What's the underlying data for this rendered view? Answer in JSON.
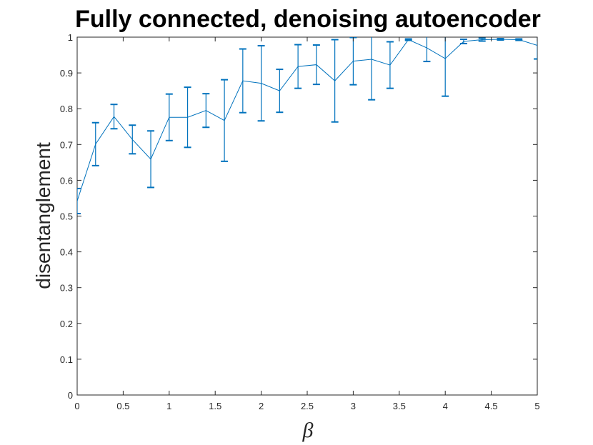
{
  "chart_data": {
    "type": "line",
    "title": "Fully connected, denoising autoencoder",
    "xlabel": "β",
    "ylabel": "disentanglement",
    "x": [
      0,
      0.2,
      0.4,
      0.6,
      0.8,
      1.0,
      1.2,
      1.4,
      1.6,
      1.8,
      2.0,
      2.2,
      2.4,
      2.6,
      2.8,
      3.0,
      3.2,
      3.4,
      3.6,
      3.8,
      4.0,
      4.2,
      4.4,
      4.6,
      4.8,
      5.0
    ],
    "series": [
      {
        "color": "#0072bd",
        "values": [
          0.542,
          0.701,
          0.778,
          0.714,
          0.659,
          0.776,
          0.776,
          0.795,
          0.767,
          0.878,
          0.871,
          0.85,
          0.918,
          0.923,
          0.878,
          0.933,
          0.938,
          0.922,
          0.993,
          0.97,
          0.94,
          0.988,
          0.993,
          0.994,
          0.993,
          0.977
        ],
        "errors": [
          0.035,
          0.06,
          0.034,
          0.04,
          0.079,
          0.065,
          0.084,
          0.047,
          0.114,
          0.089,
          0.105,
          0.06,
          0.061,
          0.055,
          0.115,
          0.066,
          0.113,
          0.065,
          0.002,
          0.038,
          0.105,
          0.006,
          0.004,
          0.002,
          0.002,
          0.038
        ]
      }
    ],
    "xlim": [
      0,
      5
    ],
    "xticks": [
      0,
      0.5,
      1,
      1.5,
      2,
      2.5,
      3,
      3.5,
      4,
      4.5,
      5
    ],
    "ylim": [
      0,
      1
    ],
    "yticks": [
      0,
      0.1,
      0.2,
      0.3,
      0.4,
      0.5,
      0.6,
      0.7,
      0.8,
      0.9,
      1
    ]
  }
}
